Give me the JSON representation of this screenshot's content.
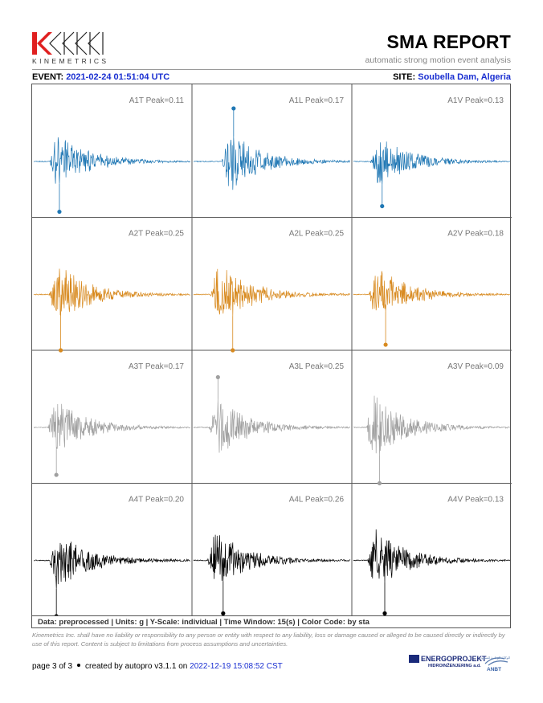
{
  "header": {
    "logo_text": "KINEMETRICS",
    "title": "SMA REPORT",
    "subtitle": "automatic strong motion event analysis"
  },
  "event": {
    "label": "EVENT:",
    "value": "2021-02-24 01:51:04 UTC",
    "site_label": "SITE:",
    "site_value": "Soubella Dam, Algeria"
  },
  "colors": {
    "A1": "#1f77b4",
    "A2": "#d88a1f",
    "A3": "#a0a0a0",
    "A4": "#000000",
    "link": "#1a2fd1"
  },
  "panels": [
    {
      "label": "A1T Peak=0.11",
      "station": "A1",
      "peak": 0.11,
      "peak_sign": -1,
      "amp": 0.9,
      "onset": 0.14,
      "seed": 11
    },
    {
      "label": "A1L Peak=0.17",
      "station": "A1",
      "peak": 0.17,
      "peak_sign": 1,
      "amp": 0.95,
      "onset": 0.22,
      "seed": 12
    },
    {
      "label": "A1V Peak=0.13",
      "station": "A1",
      "peak": 0.13,
      "peak_sign": -1,
      "amp": 0.8,
      "onset": 0.15,
      "seed": 13
    },
    {
      "label": "A2T Peak=0.25",
      "station": "A2",
      "peak": 0.25,
      "peak_sign": -1,
      "amp": 1.0,
      "onset": 0.14,
      "seed": 21
    },
    {
      "label": "A2L Peak=0.25",
      "station": "A2",
      "peak": 0.25,
      "peak_sign": -1,
      "amp": 1.0,
      "onset": 0.15,
      "seed": 22
    },
    {
      "label": "A2V Peak=0.18",
      "station": "A2",
      "peak": 0.18,
      "peak_sign": -1,
      "amp": 0.9,
      "onset": 0.14,
      "seed": 23
    },
    {
      "label": "A3T Peak=0.17",
      "station": "A3",
      "peak": 0.17,
      "peak_sign": -1,
      "amp": 0.85,
      "onset": 0.13,
      "seed": 31
    },
    {
      "label": "A3L Peak=0.25",
      "station": "A3",
      "peak": 0.25,
      "peak_sign": 1,
      "amp": 0.9,
      "onset": 0.14,
      "seed": 32
    },
    {
      "label": "A3V Peak=0.09",
      "station": "A3",
      "peak": 0.09,
      "peak_sign": -1,
      "amp": 1.0,
      "onset": 0.12,
      "seed": 33
    },
    {
      "label": "A4T Peak=0.20",
      "station": "A4",
      "peak": 0.2,
      "peak_sign": -1,
      "amp": 1.0,
      "onset": 0.14,
      "seed": 41
    },
    {
      "label": "A4L Peak=0.26",
      "station": "A4",
      "peak": 0.26,
      "peak_sign": -1,
      "amp": 0.95,
      "onset": 0.13,
      "seed": 42
    },
    {
      "label": "A4V Peak=0.13",
      "station": "A4",
      "peak": 0.13,
      "peak_sign": -1,
      "amp": 0.95,
      "onset": 0.13,
      "seed": 43
    }
  ],
  "params_line": "Data: preprocessed  |  Units: g  |  Y-Scale: individual  |  Time Window: 15(s)  |  Color Code: by sta",
  "disclaimer": "Kinemetrics Inc. shall have no liability or responsibility to any person or entity with respect to any liability, loss or damage caused or alleged to be caused directly or indirectly by use of this report. Content is subject to limitations from process assumptions and uncertainties.",
  "footer": {
    "page": "page 3 of 3",
    "created_by": "created by autopro v3.1.1 on",
    "created_on": "2022-12-19 15:08:52 CST"
  },
  "partners": {
    "energoprojekt": "ENERGOPROJEKT",
    "energoprojekt_sub": "HIDROINŽENJERING a.d.",
    "anbt_small": "الوكالة الوطنية للسدود",
    "anbt": "ANBT"
  }
}
